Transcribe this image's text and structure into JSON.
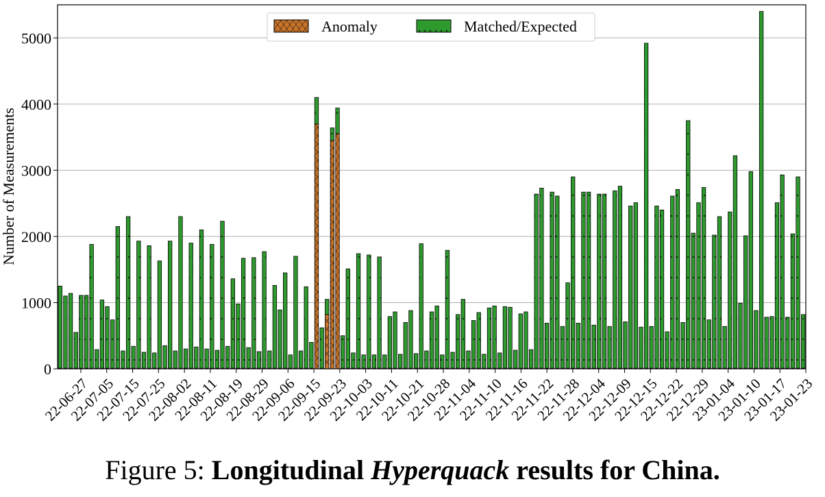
{
  "caption": {
    "prefix": "Figure 5: ",
    "bold_before": "Longitudinal ",
    "italic": "Hyperquack",
    "bold_after": " results for China."
  },
  "colors": {
    "anomaly": "#c8742a",
    "matched": "#2e9a2e",
    "grid": "#b0b0b0"
  },
  "chart_data": {
    "type": "bar",
    "stacked": true,
    "title": "",
    "xlabel": "",
    "ylabel": "Number of Measurements",
    "ylim": [
      0,
      5500
    ],
    "yticks": [
      0,
      1000,
      2000,
      3000,
      4000,
      5000
    ],
    "grid": "horizontal",
    "legend": "top-center",
    "x_tick_labels": [
      "22-06-27",
      "22-07-05",
      "22-07-15",
      "22-07-25",
      "22-08-02",
      "22-08-11",
      "22-08-19",
      "22-08-29",
      "22-09-06",
      "22-09-15",
      "22-09-23",
      "22-10-03",
      "22-10-11",
      "22-10-21",
      "22-10-28",
      "22-11-04",
      "22-11-10",
      "22-11-16",
      "22-11-22",
      "22-11-28",
      "22-12-04",
      "22-12-09",
      "22-12-15",
      "22-12-22",
      "22-12-29",
      "23-01-04",
      "23-01-10",
      "23-01-17",
      "23-01-23"
    ],
    "series": [
      {
        "name": "Anomaly",
        "values": [
          10,
          10,
          10,
          10,
          10,
          10,
          10,
          10,
          10,
          10,
          10,
          10,
          10,
          10,
          10,
          10,
          10,
          10,
          10,
          10,
          10,
          10,
          10,
          10,
          10,
          10,
          10,
          10,
          10,
          10,
          10,
          10,
          10,
          10,
          10,
          10,
          10,
          10,
          10,
          10,
          10,
          10,
          10,
          10,
          10,
          10,
          10,
          10,
          10,
          10,
          10,
          10,
          10,
          10,
          10,
          10,
          10,
          10,
          10,
          10,
          10,
          10,
          10,
          10,
          10,
          10,
          10,
          10,
          10,
          10,
          10,
          10,
          10,
          10,
          10,
          10,
          10,
          10,
          10,
          10,
          10,
          10,
          10,
          10,
          10,
          10,
          10,
          10,
          10,
          10,
          10,
          10,
          10,
          10,
          10,
          10,
          10,
          10,
          10,
          10,
          10,
          10,
          10,
          10,
          10,
          10,
          10,
          10,
          10,
          10,
          10,
          10,
          10,
          10,
          10,
          10,
          10,
          10,
          10,
          10,
          10,
          10,
          10,
          10,
          10,
          10,
          10,
          10,
          10,
          10,
          10,
          10,
          10,
          10,
          10,
          10,
          10,
          10,
          10,
          10,
          10,
          10,
          10
        ]
      },
      {
        "name": "Matched/Expected",
        "values": [
          1250,
          1100,
          1140,
          550,
          1110,
          1110,
          1880,
          290,
          1040,
          940,
          740,
          2150,
          270,
          2300,
          340,
          1930,
          250,
          1860,
          240,
          1630,
          350,
          1930,
          270,
          2300,
          300,
          1900,
          330,
          2100,
          300,
          1880,
          280,
          2230,
          340,
          1360,
          980,
          1670,
          320,
          1680,
          260,
          1770,
          270,
          1260,
          890,
          1450,
          210,
          1700,
          270,
          1240,
          400,
          4100,
          620,
          1050,
          3640,
          3940,
          500,
          1510,
          240,
          1740,
          210,
          1720,
          210,
          1690,
          210,
          790,
          860,
          220,
          700,
          880,
          230,
          1890,
          270,
          860,
          950,
          210,
          1790,
          250,
          820,
          1050,
          270,
          730,
          850,
          220,
          920,
          950,
          240,
          940,
          930,
          280,
          830,
          860,
          290,
          2640,
          2730,
          690,
          2670,
          2610,
          640,
          1300,
          2900,
          690,
          2670,
          2670,
          660,
          2640,
          2640,
          640,
          2690,
          2760,
          710,
          2460,
          2510,
          630,
          4920,
          640,
          2460,
          2400,
          560,
          2610,
          2710,
          700,
          3750,
          2050,
          2510,
          2740,
          740,
          2020,
          2300,
          640,
          2370,
          3220,
          990,
          2010,
          2980,
          880,
          5400,
          780,
          790,
          2510,
          2930,
          780,
          2040,
          2900,
          820
        ]
      }
    ],
    "anomaly_overrides": {
      "49": 3700,
      "51": 820,
      "52": 3450,
      "53": 3550
    }
  }
}
